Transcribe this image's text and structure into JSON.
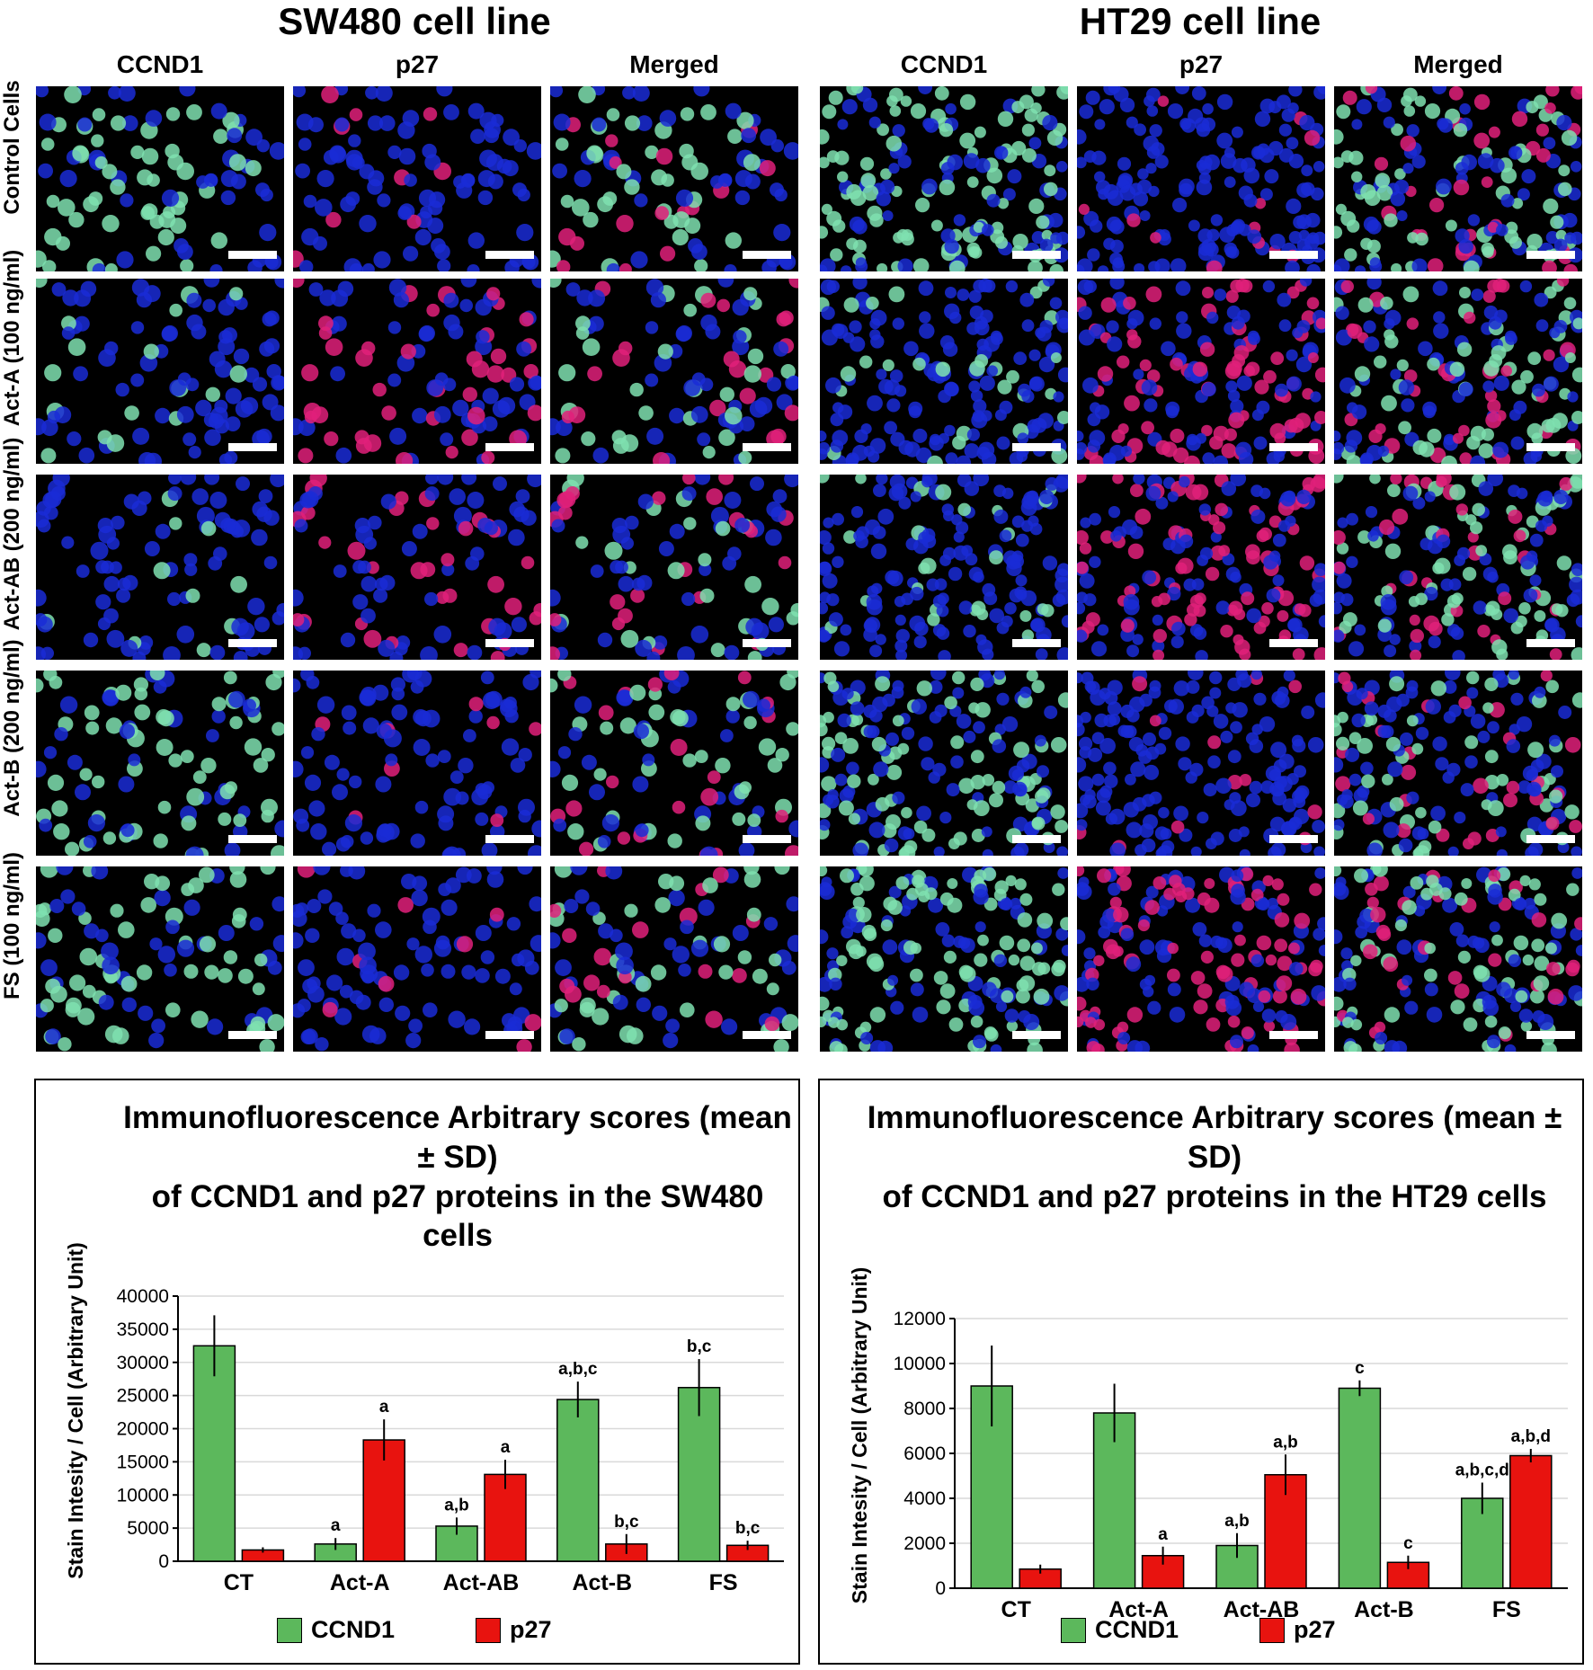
{
  "micrographs": {
    "sections": [
      {
        "title": "SW480 cell line",
        "columns": [
          "CCND1",
          "p27",
          "Merged"
        ]
      },
      {
        "title": "HT29 cell line",
        "columns": [
          "CCND1",
          "p27",
          "Merged"
        ]
      }
    ],
    "rows": [
      "Control Cells",
      "Act-A (100 ng/ml)",
      "Act-AB (200 ng/ml)",
      "Act-B (200 ng/ml)",
      "FS (100 ng/ml)"
    ],
    "colors": {
      "nucleus": "#1a2bd6",
      "ccnd1": "#7fe0b0",
      "p27": "#e0207a",
      "background": "#000000"
    }
  },
  "chart_data": [
    {
      "type": "bar",
      "title": "Immunofluorescence Arbitrary scores (mean ± SD)",
      "subtitle": "of CCND1 and p27 proteins in the SW480 cells",
      "ylabel": "Stain Intesity / Cell (Arbitrary Unit)",
      "xlabel": "",
      "ylim": [
        0,
        40000
      ],
      "yticks": [
        0,
        5000,
        10000,
        15000,
        20000,
        25000,
        30000,
        35000,
        40000
      ],
      "grid": true,
      "legend": "bottom",
      "categories": [
        "CT",
        "Act-A",
        "Act-AB",
        "Act-B",
        "FS"
      ],
      "series": [
        {
          "name": "CCND1",
          "color": "#5cb85c",
          "values": [
            32500,
            2600,
            5300,
            24400,
            26200
          ],
          "errors": [
            4600,
            900,
            1300,
            2700,
            4300
          ],
          "labels": [
            "",
            "a",
            "a,b",
            "a,b,c",
            "b,c"
          ]
        },
        {
          "name": "p27",
          "color": "#e8130f",
          "values": [
            1700,
            18300,
            13100,
            2600,
            2400
          ],
          "errors": [
            400,
            3100,
            2200,
            1500,
            700
          ],
          "labels": [
            "",
            "a",
            "a",
            "b,c",
            "b,c"
          ]
        }
      ]
    },
    {
      "type": "bar",
      "title": "Immunofluorescence Arbitrary scores (mean ± SD)",
      "subtitle": "of CCND1 and p27 proteins in the HT29 cells",
      "ylabel": "Stain Intesity / Cell (Arbitrary Unit)",
      "xlabel": "",
      "ylim": [
        0,
        12000
      ],
      "yticks": [
        0,
        2000,
        4000,
        6000,
        8000,
        10000,
        12000
      ],
      "grid": true,
      "legend": "bottom",
      "categories": [
        "CT",
        "Act-A",
        "Act-AB",
        "Act-B",
        "FS"
      ],
      "series": [
        {
          "name": "CCND1",
          "color": "#5cb85c",
          "values": [
            9000,
            7800,
            1900,
            8900,
            4000
          ],
          "errors": [
            1800,
            1300,
            550,
            350,
            700
          ],
          "labels": [
            "",
            "",
            "a,b",
            "c",
            "a,b,c,d"
          ]
        },
        {
          "name": "p27",
          "color": "#e8130f",
          "values": [
            850,
            1450,
            5050,
            1150,
            5900
          ],
          "errors": [
            200,
            400,
            900,
            300,
            300
          ],
          "labels": [
            "",
            "a",
            "a,b",
            "c",
            "a,b,d"
          ]
        }
      ]
    }
  ]
}
